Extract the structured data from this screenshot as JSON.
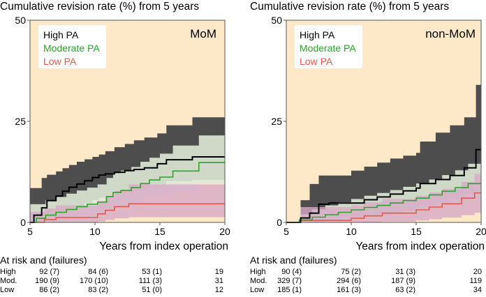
{
  "panels": [
    {
      "title": "Cumulative revision rate (%) from 5 years",
      "tag": "MoM",
      "xlabel": "Years from index operation",
      "risk_header": "At risk and (failures)",
      "risk_rows": [
        {
          "label": "High",
          "values": [
            "92 (7)",
            "84 (6)",
            "53 (1)",
            "19"
          ]
        },
        {
          "label": "Mod.",
          "values": [
            "190 (9)",
            "170 (10)",
            "111 (3)",
            "31"
          ]
        },
        {
          "label": "Low",
          "values": [
            "86 (2)",
            "83 (2)",
            "51 (0)",
            "12"
          ]
        }
      ]
    },
    {
      "title": "Cumulative revision rate (%) from 5 years",
      "tag": "non-MoM",
      "xlabel": "Years from index operation",
      "risk_header": "At risk and (failures)",
      "risk_rows": [
        {
          "label": "High",
          "values": [
            "90 (4)",
            "75 (2)",
            "31 (3)",
            "20"
          ]
        },
        {
          "label": "Mod.",
          "values": [
            "329 (7)",
            "294 (6)",
            "187 (9)",
            "119"
          ]
        },
        {
          "label": "Low",
          "values": [
            "185 (1)",
            "161 (3)",
            "63 (2)",
            "34"
          ]
        }
      ]
    }
  ],
  "colors": {
    "background": "#fde9c8",
    "high": "#000000",
    "high_band": "#4d4d4d",
    "moderate": "#2aa52a",
    "moderate_band": "#dfe9d5",
    "low": "#e05a4e",
    "low_band": "#d7a9c6"
  },
  "chart_data": [
    {
      "type": "line",
      "title": "Cumulative revision rate (%) from 5 years",
      "annotation": "MoM",
      "xlabel": "Years from index operation",
      "ylabel": "",
      "xlim": [
        5,
        20
      ],
      "ylim": [
        0,
        50
      ],
      "xticks": [
        5,
        10,
        15,
        20
      ],
      "yticks": [
        0,
        25,
        50
      ],
      "legend": "top-left",
      "series": [
        {
          "name": "High PA",
          "color": "#000000",
          "x": [
            5,
            5.3,
            5.9,
            6.3,
            7.0,
            7.5,
            8.0,
            8.6,
            9.2,
            9.8,
            10.3,
            10.8,
            11.5,
            12.3,
            13.0,
            13.8,
            14.8,
            15.5,
            17.5,
            20
          ],
          "y": [
            0,
            1.8,
            3.6,
            5.4,
            6.5,
            7.7,
            8.7,
            9.5,
            10.3,
            11.1,
            11.7,
            12.0,
            12.4,
            12.8,
            13.1,
            13.5,
            14.5,
            15.5,
            16.2,
            16.2
          ],
          "ci_upper": [
            8.5,
            8.5,
            11,
            11.8,
            12.6,
            13.4,
            14.2,
            15.0,
            15.6,
            16.2,
            16.8,
            17.6,
            18.6,
            19.4,
            20.3,
            21.0,
            22.0,
            24.0,
            26.0,
            26.0
          ],
          "ci_lower": [
            0,
            0,
            0.6,
            1.4,
            2.1,
            2.9,
            3.4,
            4.1,
            4.8,
            5.5,
            6.1,
            6.6,
            7.0,
            7.4,
            7.8,
            8.3,
            9.2,
            10.2,
            10.5,
            10.5
          ]
        },
        {
          "name": "Moderate PA",
          "color": "#2aa52a",
          "x": [
            5,
            5.5,
            6.2,
            7.0,
            7.8,
            8.6,
            9.4,
            10.2,
            10.9,
            11.4,
            12.0,
            12.8,
            13.5,
            14.2,
            15.0,
            16.0,
            18.0,
            20
          ],
          "y": [
            0,
            1.0,
            1.8,
            2.5,
            3.2,
            3.9,
            4.5,
            5.0,
            6.4,
            7.4,
            7.9,
            8.6,
            9.6,
            10.5,
            11.2,
            12.7,
            14.8,
            14.8
          ],
          "ci_upper": [
            4.5,
            4.5,
            5.5,
            6.3,
            7.1,
            7.9,
            8.6,
            9.4,
            11.0,
            12.2,
            12.8,
            13.7,
            15.0,
            16.0,
            17.0,
            19.0,
            21.5,
            21.5
          ],
          "ci_lower": [
            0,
            0,
            0.3,
            0.7,
            1.1,
            1.5,
            1.9,
            2.3,
            3.2,
            3.9,
            4.3,
            4.8,
            5.5,
            6.2,
            6.8,
            7.8,
            9.5,
            9.5
          ]
        },
        {
          "name": "Low PA",
          "color": "#e05a4e",
          "x": [
            5,
            6.1,
            7.0,
            10.2,
            10.8,
            11.5,
            12.6,
            20
          ],
          "y": [
            0,
            0.7,
            1.2,
            2.1,
            3.0,
            3.9,
            4.6,
            4.6
          ],
          "ci_upper": [
            2.6,
            3.4,
            4.2,
            5.3,
            6.6,
            7.8,
            9.4,
            9.4
          ],
          "ci_lower": [
            0,
            0,
            0,
            0.2,
            0.6,
            1.0,
            1.3,
            1.3
          ]
        }
      ]
    },
    {
      "type": "line",
      "title": "Cumulative revision rate (%) from 5 years",
      "annotation": "non-MoM",
      "xlabel": "Years from index operation",
      "ylabel": "",
      "xlim": [
        5,
        20
      ],
      "ylim": [
        0,
        50
      ],
      "xticks": [
        5,
        10,
        15,
        20
      ],
      "yticks": [
        0,
        25,
        50
      ],
      "legend": "top-left",
      "series": [
        {
          "name": "High PA",
          "color": "#000000",
          "x": [
            5,
            6.1,
            6.8,
            7.5,
            8.3,
            9.0,
            10.0,
            11.0,
            12.0,
            13.0,
            14.0,
            15.0,
            15.3,
            16.5,
            17.6,
            18.7,
            19.6,
            20
          ],
          "y": [
            0,
            1.1,
            2.3,
            4.5,
            4.8,
            4.8,
            4.8,
            5.6,
            6.3,
            7.0,
            7.8,
            8.5,
            9.6,
            10.6,
            11.6,
            13.5,
            18.0,
            18.0
          ],
          "ci_upper": [
            0,
            5.5,
            9.5,
            11.6,
            11.6,
            11.6,
            12.8,
            13.8,
            14.8,
            15.8,
            16.5,
            17.2,
            20.0,
            22.2,
            24.0,
            26.0,
            34.0,
            34.0
          ],
          "ci_lower": [
            0,
            0,
            0,
            1.2,
            1.2,
            1.2,
            1.2,
            1.6,
            2.0,
            2.5,
            3.0,
            3.6,
            4.2,
            5.0,
            5.8,
            7.0,
            8.5,
            8.5
          ]
        },
        {
          "name": "Moderate PA",
          "color": "#2aa52a",
          "x": [
            5,
            6.0,
            7.0,
            8.0,
            9.0,
            10.0,
            11.0,
            12.0,
            13.0,
            14.0,
            15.0,
            16.0,
            17.0,
            18.0,
            19.0,
            20
          ],
          "y": [
            0,
            0.6,
            1.3,
            1.9,
            2.5,
            3.1,
            3.7,
            4.2,
            4.8,
            5.4,
            6.0,
            6.8,
            7.7,
            8.6,
            9.6,
            9.6
          ],
          "ci_upper": [
            0,
            2.0,
            3.2,
            4.2,
            5.0,
            5.8,
            6.6,
            7.3,
            8.0,
            8.8,
            9.6,
            10.6,
            11.7,
            12.9,
            14.5,
            14.5
          ],
          "ci_lower": [
            0,
            0,
            0.1,
            0.4,
            0.8,
            1.2,
            1.6,
            2.0,
            2.5,
            3.0,
            3.5,
            4.1,
            4.7,
            5.2,
            5.8,
            5.8
          ]
        },
        {
          "name": "Low PA",
          "color": "#e05a4e",
          "x": [
            5,
            6.1,
            10.0,
            11.0,
            12.4,
            15.0,
            16.0,
            17.0,
            18.5,
            19.5,
            20
          ],
          "y": [
            0,
            0.5,
            1.0,
            1.6,
            2.3,
            3.1,
            3.8,
            4.6,
            6.0,
            7.3,
            7.3
          ],
          "ci_upper": [
            0,
            3.8,
            4.2,
            5.0,
            5.8,
            6.6,
            7.4,
            8.3,
            10.0,
            12.0,
            12.0
          ],
          "ci_lower": [
            0,
            0,
            0,
            0,
            0.2,
            0.5,
            0.8,
            1.2,
            1.8,
            2.4,
            2.4
          ]
        }
      ]
    }
  ]
}
